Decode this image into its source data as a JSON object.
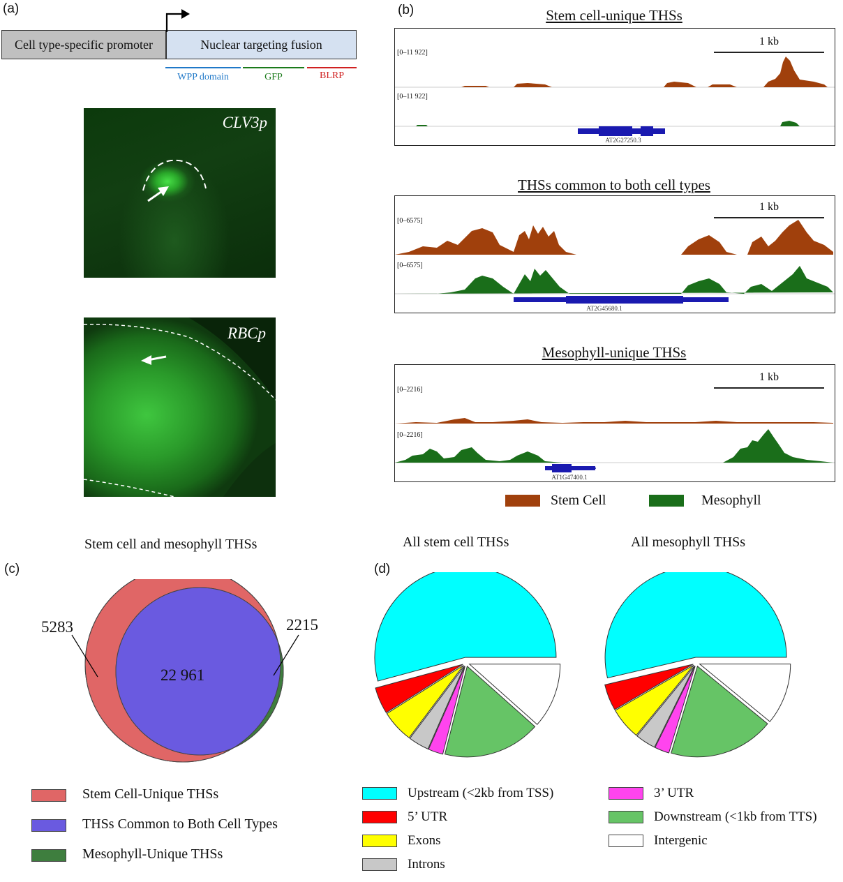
{
  "panel_a": {
    "letter": "(a)",
    "promoter_label": "Cell type-specific promoter",
    "fusion_label": "Nuclear targeting fusion",
    "domains": [
      {
        "label": "WPP domain",
        "color": "#1f78c8"
      },
      {
        "label": "GFP",
        "color": "#1a7a1a"
      },
      {
        "label": "BLRP",
        "color": "#d02020"
      }
    ],
    "image1_label": "CLV3p",
    "image2_label": "RBCp"
  },
  "panel_b": {
    "letter": "(b)",
    "tracks": [
      {
        "title": "Stem cell-unique THSs",
        "scale": "1 kb",
        "range1": "[0–11 922]",
        "range2": "[0–11 922]",
        "gene": "AT2G27250.3"
      },
      {
        "title": "THSs common to both cell types",
        "scale": "1 kb",
        "range1": "[0–6575]",
        "range2": "[0–6575]",
        "gene": "AT2G45680.1"
      },
      {
        "title": "Mesophyll-unique THSs",
        "scale": "1 kb",
        "range1": "[0–2216]",
        "range2": "[0–2216]",
        "gene": "AT1G47400.1"
      }
    ],
    "legend": [
      {
        "label": "Stem Cell",
        "color": "#a0400c"
      },
      {
        "label": "Mesophyll",
        "color": "#1a6e1a"
      }
    ]
  },
  "panel_c": {
    "letter": "(c)",
    "title": "Stem cell and mesophyll THSs",
    "values": {
      "stem_unique": "5283",
      "common": "22 961",
      "meso_unique": "2215"
    },
    "legend": [
      {
        "label": "Stem Cell-Unique THSs",
        "color": "#e06666"
      },
      {
        "label": "THSs Common to Both Cell Types",
        "color": "#6a5ae0"
      },
      {
        "label": "Mesophyll-Unique THSs",
        "color": "#3e7e3e"
      }
    ]
  },
  "panel_d": {
    "letter": "(d)",
    "chart_data": [
      {
        "type": "pie",
        "title": "All stem cell THSs",
        "labels": [
          "Upstream (<2kb from TSS)",
          "5’ UTR",
          "Exons",
          "Introns",
          "3’ UTR",
          "Downstream (<1kb from TTS)",
          "Intergenic"
        ],
        "values": [
          51.5,
          4.5,
          5.5,
          3.5,
          2.5,
          16.5,
          11.0
        ]
      },
      {
        "type": "pie",
        "title": "All mesophyll THSs",
        "labels": [
          "Upstream (<2kb from TSS)",
          "5’ UTR",
          "Exons",
          "Introns",
          "3’ UTR",
          "Downstream (<1kb from TTS)",
          "Intergenic"
        ],
        "values": [
          51.5,
          4.5,
          5.5,
          3.5,
          2.5,
          18.0,
          10.5
        ]
      }
    ],
    "legend": [
      {
        "label": "Upstream (<2kb from TSS)",
        "color": "#00ffff"
      },
      {
        "label": "5’ UTR",
        "color": "#ff0000"
      },
      {
        "label": "Exons",
        "color": "#ffff00"
      },
      {
        "label": "Introns",
        "color": "#c8c8c8"
      },
      {
        "label": "3’ UTR",
        "color": "#ff44ee"
      },
      {
        "label": "Downstream (<1kb from TTS)",
        "color": "#66c466"
      },
      {
        "label": "Intergenic",
        "color": "#ffffff"
      }
    ]
  }
}
